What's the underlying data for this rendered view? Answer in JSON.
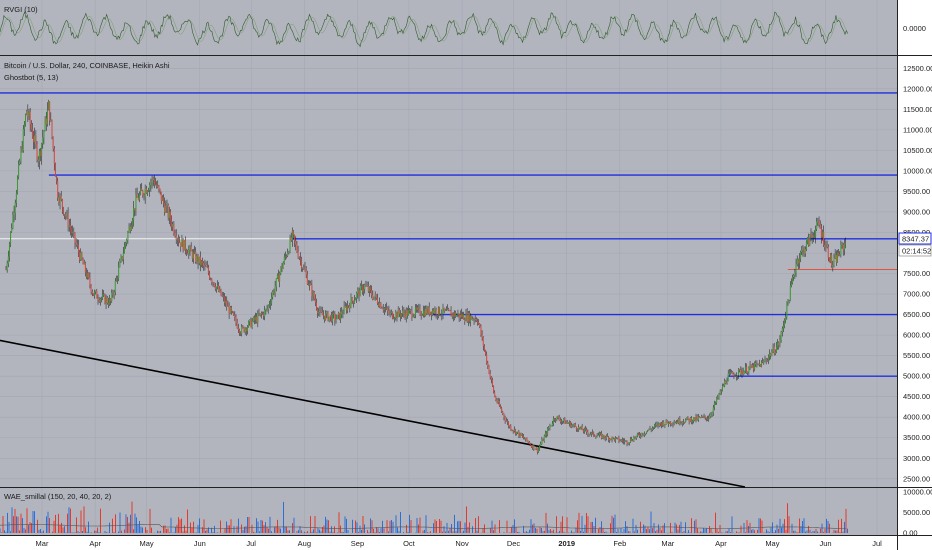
{
  "colors": {
    "background": "#b2b5be",
    "axis_bg": "#ffffff",
    "grid": "#a4a8b2",
    "bull": "#3a9a2e",
    "bear": "#d9453a",
    "wick": "#111111",
    "hline": "#1f2fe0",
    "white_line": "#f4f4f4",
    "red_level": "#e0533d",
    "trend": "#000000",
    "osc_line": "#2f5a2a",
    "wae_blue": "#2d6fd6",
    "wae_red": "#e23a2e"
  },
  "indicators": {
    "rvgi_label": "RVGI (10)",
    "rvgi_value": "0.0000",
    "main_title": "Bitcoin / U.S. Dollar, 240, COINBASE, Heikin Ashi",
    "ghostbot_label": "Ghostbot (5, 13)",
    "wae_label": "WAE_smillal (150, 20, 40, 20, 2)"
  },
  "price_scale": {
    "ticks": [
      "12500.00",
      "12000.00",
      "11500.00",
      "11000.00",
      "10500.00",
      "10000.00",
      "9500.00",
      "9000.00",
      "8500.00",
      "8000.00",
      "7500.00",
      "7000.00",
      "6500.00",
      "6000.00",
      "5500.00",
      "5000.00",
      "4500.00",
      "4000.00",
      "3500.00",
      "3000.00",
      "2500.00"
    ],
    "current_price": "8347.37",
    "countdown": "02:14:52"
  },
  "wae_scale": {
    "ticks": [
      "10000.00",
      "5000.00",
      "0.00"
    ]
  },
  "time_axis": {
    "months": [
      "Mar",
      "Apr",
      "May",
      "Jun",
      "Jul",
      "Aug",
      "Sep",
      "Oct",
      "Nov",
      "Dec",
      "2019",
      "Feb",
      "Mar",
      "Apr",
      "May",
      "Jun",
      "Jul"
    ]
  },
  "chart_data": {
    "type": "candlestick",
    "title": "Bitcoin / U.S. Dollar, 240, COINBASE, Heikin Ashi",
    "x_range": [
      "Feb 2018",
      "Jul 2019"
    ],
    "ylim": [
      2300,
      12800
    ],
    "grid": true,
    "price_path_key_points": [
      {
        "date": "2018-02-08",
        "price": 7600
      },
      {
        "date": "2018-02-20",
        "price": 11500
      },
      {
        "date": "2018-02-27",
        "price": 10300
      },
      {
        "date": "2018-03-05",
        "price": 11600
      },
      {
        "date": "2018-03-10",
        "price": 9500
      },
      {
        "date": "2018-03-20",
        "price": 8300
      },
      {
        "date": "2018-03-31",
        "price": 7000
      },
      {
        "date": "2018-04-10",
        "price": 6800
      },
      {
        "date": "2018-04-25",
        "price": 9300
      },
      {
        "date": "2018-05-05",
        "price": 9800
      },
      {
        "date": "2018-05-20",
        "price": 8300
      },
      {
        "date": "2018-06-05",
        "price": 7600
      },
      {
        "date": "2018-06-25",
        "price": 6100
      },
      {
        "date": "2018-07-10",
        "price": 6600
      },
      {
        "date": "2018-07-25",
        "price": 8400
      },
      {
        "date": "2018-08-10",
        "price": 6500
      },
      {
        "date": "2018-08-20",
        "price": 6400
      },
      {
        "date": "2018-09-05",
        "price": 7200
      },
      {
        "date": "2018-09-20",
        "price": 6500
      },
      {
        "date": "2018-10-15",
        "price": 6600
      },
      {
        "date": "2018-11-10",
        "price": 6400
      },
      {
        "date": "2018-11-20",
        "price": 4500
      },
      {
        "date": "2018-11-28",
        "price": 3800
      },
      {
        "date": "2018-12-15",
        "price": 3200
      },
      {
        "date": "2018-12-25",
        "price": 4000
      },
      {
        "date": "2019-01-15",
        "price": 3600
      },
      {
        "date": "2019-02-05",
        "price": 3400
      },
      {
        "date": "2019-02-25",
        "price": 3850
      },
      {
        "date": "2019-03-25",
        "price": 4000
      },
      {
        "date": "2019-04-05",
        "price": 5000
      },
      {
        "date": "2019-04-25",
        "price": 5300
      },
      {
        "date": "2019-05-05",
        "price": 5800
      },
      {
        "date": "2019-05-15",
        "price": 7800
      },
      {
        "date": "2019-05-28",
        "price": 8700
      },
      {
        "date": "2019-06-05",
        "price": 7700
      },
      {
        "date": "2019-06-13",
        "price": 8300
      }
    ],
    "horizontal_levels": [
      {
        "price": 11900,
        "from": "2018-02-01",
        "color": "blue"
      },
      {
        "price": 9900,
        "from": "2018-03-05",
        "color": "blue"
      },
      {
        "price": 8347.37,
        "from": "2018-07-25",
        "color": "blue"
      },
      {
        "price": 6500,
        "from": "2018-10-15",
        "color": "blue"
      },
      {
        "price": 5000,
        "from": "2019-04-05",
        "color": "blue"
      },
      {
        "price": 7600,
        "from": "2019-05-10",
        "color": "red"
      },
      {
        "price": 8347.37,
        "from": "2018-02-01",
        "to": "2018-07-25",
        "color": "white"
      }
    ],
    "trendline": {
      "from": {
        "date": "2018-02-01",
        "price": 5900
      },
      "to": {
        "date": "2019-04-15",
        "price": 2300
      }
    },
    "indicator_panes": [
      {
        "name": "RVGI (10)",
        "value": 0.0
      },
      {
        "name": "WAE_smillal (150, 20, 40, 20, 2)",
        "ylim": [
          0,
          10000
        ]
      }
    ]
  }
}
